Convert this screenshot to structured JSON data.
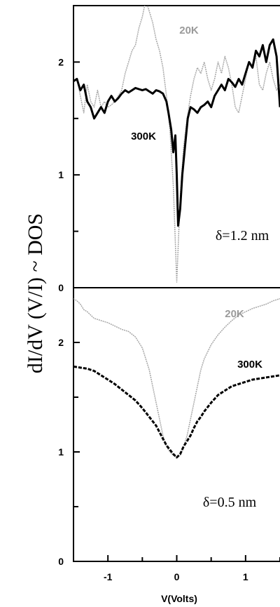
{
  "chart_data": {
    "type": "line",
    "ylabel": "dI/dV (V/I) ~ DOS",
    "xlabel": "V(Volts)",
    "xlim": [
      -1.5,
      1.5
    ],
    "xticks": [
      -1,
      0,
      1
    ],
    "shared_x": true,
    "colors": {
      "warm": "#000000",
      "cold": "#a8a8a8"
    },
    "panels": [
      {
        "id": "top",
        "annotation": "δ=1.2 nm",
        "ylim": [
          0,
          2.5
        ],
        "yticks": [
          0,
          1,
          2
        ],
        "series": [
          {
            "name": "20K",
            "style": "cold",
            "x": [
              -1.45,
              -1.4,
              -1.35,
              -1.3,
              -1.25,
              -1.2,
              -1.15,
              -1.1,
              -1.05,
              -1.0,
              -0.95,
              -0.9,
              -0.85,
              -0.8,
              -0.75,
              -0.7,
              -0.65,
              -0.6,
              -0.55,
              -0.5,
              -0.45,
              -0.4,
              -0.35,
              -0.3,
              -0.25,
              -0.2,
              -0.15,
              -0.1,
              -0.05,
              0.0,
              0.05,
              0.1,
              0.15,
              0.2,
              0.25,
              0.3,
              0.35,
              0.4,
              0.45,
              0.5,
              0.55,
              0.6,
              0.65,
              0.7,
              0.75,
              0.8,
              0.85,
              0.9,
              0.95,
              1.0,
              1.05,
              1.1,
              1.15,
              1.2,
              1.25,
              1.3,
              1.35,
              1.4,
              1.45,
              1.5
            ],
            "y": [
              1.85,
              1.7,
              1.55,
              1.8,
              1.65,
              1.6,
              1.75,
              1.6,
              1.65,
              1.6,
              1.62,
              1.65,
              1.7,
              1.75,
              1.9,
              2.0,
              2.1,
              2.15,
              2.3,
              2.4,
              2.55,
              2.45,
              2.35,
              2.2,
              2.1,
              1.95,
              1.7,
              1.4,
              0.9,
              0.05,
              0.8,
              1.25,
              1.5,
              1.7,
              1.85,
              1.95,
              1.9,
              2.0,
              1.85,
              1.75,
              1.85,
              2.0,
              1.9,
              2.05,
              1.95,
              1.8,
              1.6,
              1.55,
              1.7,
              1.85,
              2.0,
              1.95,
              2.05,
              1.8,
              1.75,
              1.9,
              2.0,
              1.85,
              1.75,
              1.8
            ]
          },
          {
            "name": "300K",
            "style": "warm",
            "x": [
              -1.5,
              -1.45,
              -1.4,
              -1.35,
              -1.3,
              -1.25,
              -1.2,
              -1.15,
              -1.1,
              -1.05,
              -1.0,
              -0.95,
              -0.9,
              -0.85,
              -0.8,
              -0.75,
              -0.7,
              -0.65,
              -0.6,
              -0.55,
              -0.5,
              -0.45,
              -0.4,
              -0.35,
              -0.3,
              -0.25,
              -0.2,
              -0.15,
              -0.12,
              -0.08,
              -0.05,
              -0.02,
              0.0,
              0.02,
              0.05,
              0.08,
              0.12,
              0.16,
              0.2,
              0.25,
              0.3,
              0.35,
              0.4,
              0.45,
              0.5,
              0.55,
              0.6,
              0.65,
              0.7,
              0.75,
              0.8,
              0.85,
              0.9,
              0.95,
              1.0,
              1.05,
              1.1,
              1.15,
              1.2,
              1.25,
              1.3,
              1.35,
              1.4,
              1.45,
              1.5
            ],
            "y": [
              1.83,
              1.85,
              1.75,
              1.8,
              1.65,
              1.6,
              1.5,
              1.55,
              1.6,
              1.55,
              1.65,
              1.7,
              1.65,
              1.68,
              1.72,
              1.75,
              1.73,
              1.75,
              1.77,
              1.76,
              1.75,
              1.76,
              1.74,
              1.72,
              1.75,
              1.74,
              1.72,
              1.65,
              1.55,
              1.4,
              1.2,
              1.35,
              1.0,
              0.55,
              0.7,
              1.0,
              1.25,
              1.5,
              1.6,
              1.58,
              1.55,
              1.6,
              1.62,
              1.65,
              1.6,
              1.7,
              1.75,
              1.8,
              1.75,
              1.85,
              1.82,
              1.78,
              1.85,
              1.8,
              1.9,
              2.0,
              1.95,
              2.1,
              2.05,
              2.15,
              2.0,
              2.15,
              2.2,
              2.05,
              1.6
            ]
          }
        ]
      },
      {
        "id": "bottom",
        "annotation": "δ=0.5 nm",
        "ylim": [
          0,
          2.5
        ],
        "yticks": [
          0,
          1,
          2
        ],
        "series": [
          {
            "name": "20K",
            "style": "cold",
            "x": [
              -1.5,
              -1.45,
              -1.4,
              -1.35,
              -1.3,
              -1.25,
              -1.2,
              -1.1,
              -1.0,
              -0.9,
              -0.8,
              -0.7,
              -0.6,
              -0.5,
              -0.45,
              -0.4,
              -0.35,
              -0.3,
              -0.25,
              -0.2,
              -0.15,
              -0.1,
              -0.05,
              0.0,
              0.05,
              0.1,
              0.15,
              0.2,
              0.25,
              0.3,
              0.35,
              0.4,
              0.5,
              0.6,
              0.7,
              0.8,
              0.9,
              1.0,
              1.1,
              1.2,
              1.3,
              1.4,
              1.5
            ],
            "y": [
              2.4,
              2.38,
              2.35,
              2.3,
              2.28,
              2.25,
              2.22,
              2.2,
              2.18,
              2.15,
              2.12,
              2.1,
              2.05,
              1.95,
              1.85,
              1.75,
              1.6,
              1.45,
              1.3,
              1.15,
              1.05,
              1.0,
              0.97,
              0.95,
              0.97,
              1.05,
              1.15,
              1.3,
              1.45,
              1.6,
              1.75,
              1.85,
              1.98,
              2.07,
              2.14,
              2.2,
              2.25,
              2.28,
              2.31,
              2.33,
              2.35,
              2.38,
              2.4
            ]
          },
          {
            "name": "300K",
            "style": "warm",
            "x": [
              -1.5,
              -1.4,
              -1.3,
              -1.2,
              -1.1,
              -1.0,
              -0.9,
              -0.8,
              -0.7,
              -0.6,
              -0.5,
              -0.45,
              -0.4,
              -0.35,
              -0.3,
              -0.25,
              -0.2,
              -0.15,
              -0.1,
              -0.05,
              0.0,
              0.05,
              0.1,
              0.15,
              0.2,
              0.25,
              0.3,
              0.35,
              0.4,
              0.5,
              0.6,
              0.7,
              0.8,
              0.9,
              1.0,
              1.1,
              1.2,
              1.3,
              1.4,
              1.5
            ],
            "y": [
              1.78,
              1.77,
              1.76,
              1.74,
              1.7,
              1.66,
              1.62,
              1.57,
              1.52,
              1.47,
              1.4,
              1.36,
              1.32,
              1.28,
              1.24,
              1.18,
              1.12,
              1.06,
              1.02,
              0.98,
              0.95,
              0.98,
              1.05,
              1.1,
              1.15,
              1.22,
              1.28,
              1.32,
              1.37,
              1.45,
              1.52,
              1.56,
              1.6,
              1.62,
              1.64,
              1.66,
              1.67,
              1.68,
              1.69,
              1.7
            ]
          }
        ]
      }
    ]
  }
}
